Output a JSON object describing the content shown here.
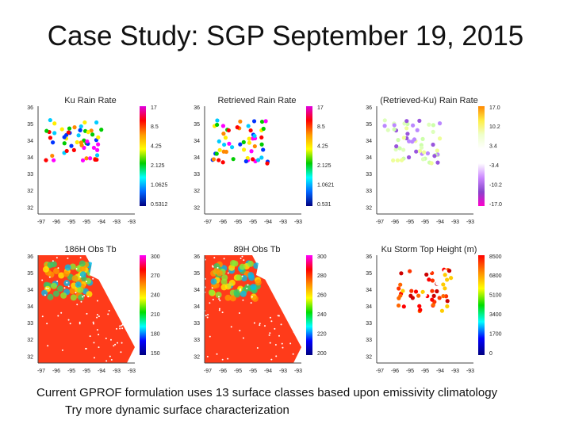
{
  "title": "Case Study: SGP September 19, 2015",
  "panels": [
    {
      "title": "Ku Rain Rate",
      "yticks": [
        "36",
        "35",
        "34",
        "34",
        "33",
        "32",
        "32"
      ],
      "xticks": [
        "-97",
        "-96",
        "-95",
        "-95",
        "-94",
        "-93",
        "-93"
      ],
      "colorbar": [
        "17",
        "8.5",
        "4.25",
        "2.125",
        "1.0625",
        "0.5312"
      ]
    },
    {
      "title": "Retrieved Rain Rate",
      "yticks": [
        "36",
        "35",
        "34",
        "34",
        "33",
        "32",
        "32"
      ],
      "xticks": [
        "-97",
        "-96",
        "-95",
        "-95",
        "-94",
        "-93",
        "-93"
      ],
      "colorbar": [
        "17",
        "8.5",
        "4.25",
        "2.125",
        "1.0621",
        "0.531"
      ]
    },
    {
      "title": "(Retrieved-Ku) Rain Rate",
      "yticks": [
        "36",
        "35",
        "34",
        "34",
        "33",
        "33",
        "32"
      ],
      "xticks": [
        "-97",
        "-96",
        "-95",
        "-95",
        "-94",
        "-93",
        "-93"
      ],
      "colorbar": [
        "17.0",
        "10.2",
        "3.4",
        "-3.4",
        "-10.2",
        "-17.0"
      ]
    },
    {
      "title": "186H Obs Tb",
      "yticks": [
        "36",
        "35",
        "34",
        "34",
        "33",
        "32",
        "32"
      ],
      "xticks": [
        "-97",
        "-96",
        "-95",
        "-95",
        "-94",
        "-93",
        "-93"
      ],
      "colorbar": [
        "300",
        "270",
        "240",
        "210",
        "180",
        "150"
      ]
    },
    {
      "title": "89H Obs Tb",
      "yticks": [
        "36",
        "35",
        "34",
        "34",
        "33",
        "33",
        "32"
      ],
      "xticks": [
        "-97",
        "-96",
        "-95",
        "-95",
        "-94",
        "-93",
        "-93"
      ],
      "colorbar": [
        "300",
        "280",
        "260",
        "240",
        "220",
        "200"
      ]
    },
    {
      "title": "Ku Storm Top Height (m)",
      "yticks": [
        "36",
        "35",
        "34",
        "34",
        "33",
        "33",
        "32"
      ],
      "xticks": [
        "-97",
        "-96",
        "-95",
        "-95",
        "-94",
        "-93",
        "-93"
      ],
      "colorbar": [
        "8500",
        "6800",
        "5100",
        "3400",
        "1700",
        "0"
      ]
    }
  ],
  "footer": [
    "Current GPROF formulation uses 13 surface classes based upon emissivity climatology",
    "Try more dynamic surface characterization"
  ]
}
